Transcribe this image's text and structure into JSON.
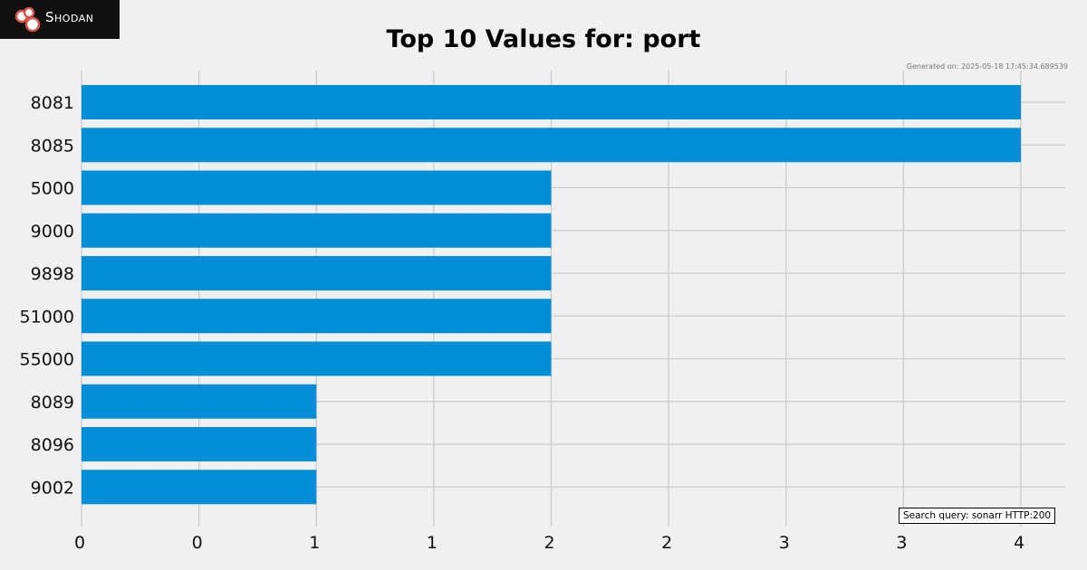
{
  "brand": {
    "name": "Shodan"
  },
  "generated_text": "Generated on: 2025-05-18 17:45:34.689539",
  "query_text": "Search query: sonarr HTTP:200",
  "colors": {
    "bar": "#038fd8",
    "background": "#f0f0f0",
    "grid": "#cbcbcb"
  },
  "chart_data": {
    "type": "bar",
    "orientation": "horizontal",
    "title": "Top 10 Values for: port",
    "xlabel": "",
    "ylabel": "",
    "categories": [
      "8081",
      "8085",
      "5000",
      "9000",
      "9898",
      "51000",
      "55000",
      "8089",
      "8096",
      "9002"
    ],
    "values": [
      4,
      4,
      2,
      2,
      2,
      2,
      2,
      1,
      1,
      1
    ],
    "xlim": [
      0,
      4.2
    ],
    "x_ticks": [
      0,
      0.5,
      1,
      1.5,
      2,
      2.5,
      3,
      3.5,
      4
    ],
    "x_tick_labels": [
      "0",
      "0",
      "1",
      "1",
      "2",
      "2",
      "3",
      "3",
      "4"
    ],
    "grid": true
  }
}
